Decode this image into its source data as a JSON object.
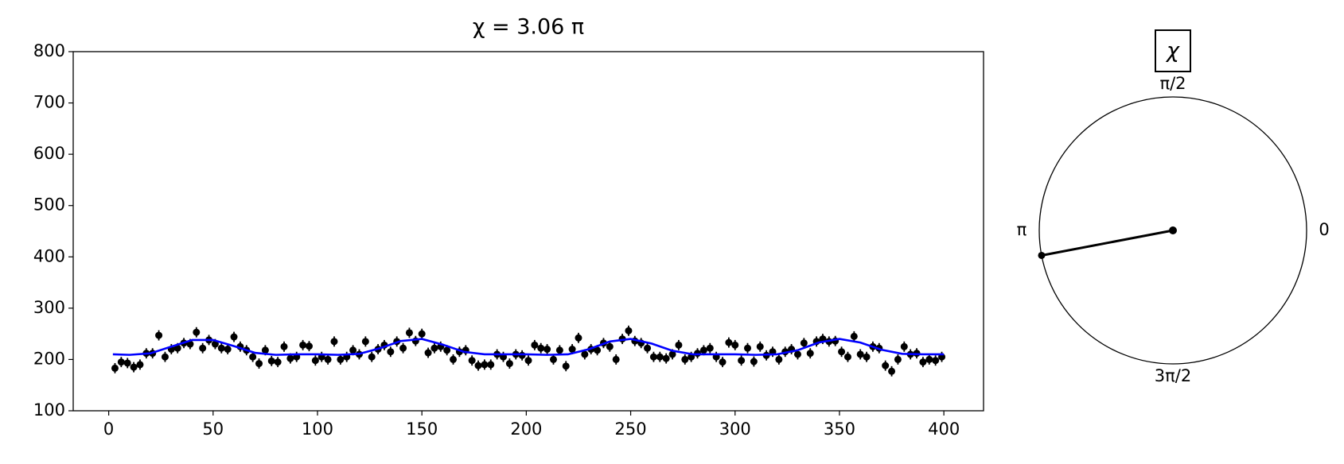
{
  "chart_data": [
    {
      "type": "scatter",
      "title": "χ = 3.06 π",
      "xlim": [
        -17,
        419
      ],
      "ylim": [
        100,
        800
      ],
      "xticks": [
        0,
        50,
        100,
        150,
        200,
        250,
        300,
        350,
        400
      ],
      "yticks": [
        100,
        200,
        300,
        400,
        500,
        600,
        700,
        800
      ],
      "series": [
        {
          "type": "scatter",
          "color": "#000000",
          "yerr": 10,
          "x": [
            3,
            6,
            9,
            12,
            15,
            18,
            21,
            24,
            27,
            30,
            33,
            36,
            39,
            42,
            45,
            48,
            51,
            54,
            57,
            60,
            63,
            66,
            69,
            72,
            75,
            78,
            81,
            84,
            87,
            90,
            93,
            96,
            99,
            102,
            105,
            108,
            111,
            114,
            117,
            120,
            123,
            126,
            129,
            132,
            135,
            138,
            141,
            144,
            147,
            150,
            153,
            156,
            159,
            162,
            165,
            168,
            171,
            174,
            177,
            180,
            183,
            186,
            189,
            192,
            195,
            198,
            201,
            204,
            207,
            210,
            213,
            216,
            219,
            222,
            225,
            228,
            231,
            234,
            237,
            240,
            243,
            246,
            249,
            252,
            255,
            258,
            261,
            264,
            267,
            270,
            273,
            276,
            279,
            282,
            285,
            288,
            291,
            294,
            297,
            300,
            303,
            306,
            309,
            312,
            315,
            318,
            321,
            324,
            327,
            330,
            333,
            336,
            339,
            342,
            345,
            348,
            351,
            354,
            357,
            360,
            363,
            366,
            369,
            372,
            375,
            378,
            381,
            384,
            387,
            390,
            393,
            396,
            399
          ],
          "values": [
            183,
            195,
            193,
            185,
            190,
            212,
            212,
            247,
            205,
            220,
            222,
            232,
            230,
            253,
            222,
            238,
            230,
            222,
            220,
            244,
            225,
            218,
            205,
            192,
            218,
            197,
            195,
            225,
            202,
            205,
            228,
            226,
            198,
            205,
            200,
            235,
            200,
            205,
            218,
            210,
            235,
            205,
            220,
            228,
            215,
            235,
            222,
            252,
            236,
            250,
            213,
            222,
            225,
            218,
            200,
            215,
            218,
            198,
            188,
            190,
            190,
            210,
            205,
            192,
            210,
            208,
            198,
            228,
            222,
            220,
            200,
            218,
            187,
            220,
            242,
            210,
            220,
            218,
            232,
            225,
            200,
            240,
            256,
            236,
            232,
            222,
            205,
            205,
            202,
            210,
            228,
            200,
            205,
            212,
            218,
            222,
            205,
            195,
            233,
            228,
            198,
            222,
            196,
            225,
            208,
            215,
            200,
            215,
            220,
            210,
            232,
            212,
            235,
            240,
            235,
            236,
            215,
            205,
            245,
            210,
            205,
            225,
            222,
            188,
            177,
            200,
            225,
            210,
            212,
            195,
            200,
            198,
            205
          ]
        },
        {
          "type": "line",
          "color": "#0000ff",
          "x": [
            2,
            10,
            20,
            30,
            40,
            50,
            60,
            70,
            80,
            90,
            100,
            110,
            120,
            130,
            140,
            150,
            160,
            170,
            180,
            190,
            200,
            210,
            220,
            230,
            240,
            250,
            260,
            270,
            280,
            290,
            300,
            310,
            320,
            330,
            340,
            350,
            360,
            370,
            380,
            390,
            400
          ],
          "values": [
            210,
            209,
            212,
            225,
            238,
            238,
            226,
            213,
            209,
            210,
            210,
            209,
            211,
            222,
            236,
            240,
            229,
            215,
            210,
            210,
            210,
            209,
            210,
            220,
            235,
            240,
            231,
            217,
            210,
            210,
            210,
            209,
            210,
            218,
            233,
            240,
            233,
            219,
            211,
            210,
            210
          ]
        }
      ]
    },
    {
      "type": "polar",
      "title": "χ",
      "values": [
        3.06
      ],
      "ticks": [
        0,
        {
          "value": 0.5,
          "label": "π/2"
        },
        {
          "value": 1,
          "label": "π"
        },
        {
          "value": 1.5,
          "label": "3π/2"
        }
      ]
    }
  ]
}
